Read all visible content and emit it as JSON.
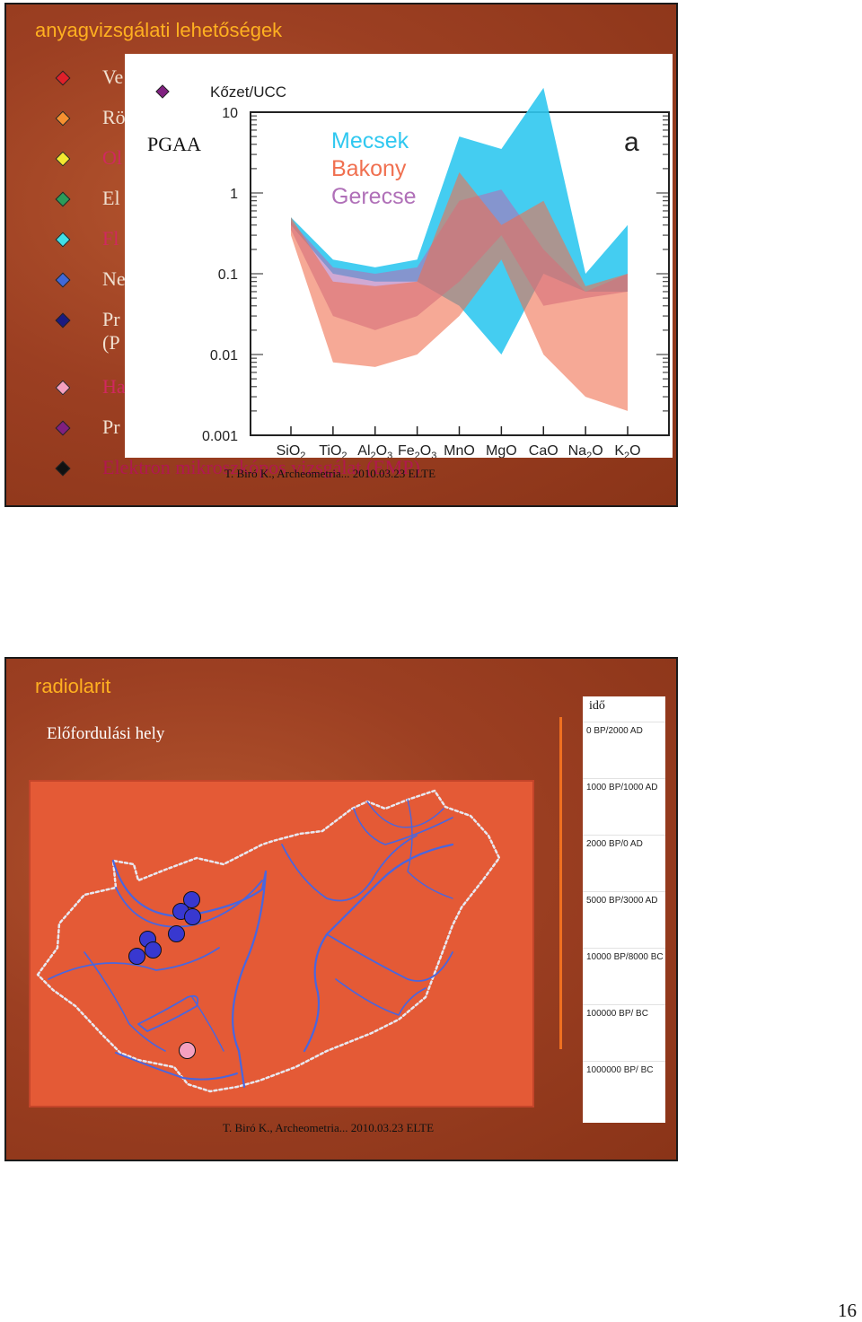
{
  "slide1": {
    "title": "anyagvizsgálati lehetőségek",
    "bullets": [
      {
        "text": "Ve",
        "diamond_color": "#e0202a",
        "text_color": "#f0e0d0"
      },
      {
        "text": "Rö",
        "diamond_color": "#f59030",
        "text_color": "#f0e0d0"
      },
      {
        "text": "Ol",
        "diamond_color": "#f2e830",
        "text_color": "#d02860"
      },
      {
        "text": "El",
        "diamond_color": "#2a9c5a",
        "text_color": "#f0e0d0"
      },
      {
        "text": "Fl",
        "diamond_color": "#40e0e8",
        "text_color": "#d02860"
      },
      {
        "text": "Ne",
        "diamond_color": "#4068d8",
        "text_color": "#f0e0d0"
      },
      {
        "text": "Pr",
        "text2": "(P",
        "diamond_color": "#1a1a80",
        "text_color": "#f0e0d0"
      },
      {
        "text": "Ha",
        "diamond_color": "#f4a0c0",
        "text_color": "#d02860"
      },
      {
        "text": "Pr",
        "diamond_color": "#802080",
        "text_color": "#f0e0d0"
      },
      {
        "text": "Elektron mikroszkópos vizsgálat (EMP)",
        "diamond_color": "#111111",
        "text_color": "#b01850"
      }
    ],
    "pgaa_label": "PGAA",
    "footer": "T. Biró K., Archeometria... 2010.03.23 ELTE",
    "chart_data": {
      "type": "area",
      "ylabel": "Kőzet/UCC",
      "yscale": "log",
      "ylim": [
        0.001,
        10
      ],
      "y_ticks": [
        "10",
        "1",
        "0.1",
        "0.01",
        "0.001"
      ],
      "categories": [
        "SiO2",
        "TiO2",
        "Al2O3",
        "Fe2O3",
        "MnO",
        "MgO",
        "CaO",
        "Na2O",
        "K2O"
      ],
      "panel_label": "a",
      "legend_position": "top-center",
      "series": [
        {
          "name": "Mecsek",
          "color": "#30c8f0",
          "upper": [
            0.5,
            0.15,
            0.12,
            0.15,
            5,
            3.5,
            20,
            0.1,
            0.4
          ],
          "lower": [
            0.4,
            0.1,
            0.08,
            0.08,
            0.04,
            0.01,
            0.1,
            0.06,
            0.06
          ]
        },
        {
          "name": "Bakony",
          "color": "#f07050",
          "upper": [
            0.5,
            0.08,
            0.07,
            0.08,
            1.8,
            0.4,
            0.8,
            0.07,
            0.1
          ],
          "lower": [
            0.3,
            0.008,
            0.007,
            0.01,
            0.03,
            0.15,
            0.01,
            0.003,
            0.002
          ]
        },
        {
          "name": "Gerecse",
          "color": "#b070b8",
          "upper": [
            0.45,
            0.12,
            0.1,
            0.12,
            0.8,
            1.1,
            0.2,
            0.06,
            0.1
          ],
          "lower": [
            0.35,
            0.03,
            0.02,
            0.03,
            0.08,
            0.3,
            0.04,
            0.05,
            0.06
          ]
        }
      ]
    }
  },
  "slide2": {
    "title": "radiolarit",
    "occurrence_label": "Előfordulási hely",
    "time_title": "idő",
    "time_ticks": [
      "0 BP/2000 AD",
      "1000 BP/1000 AD",
      "2000 BP/0 AD",
      "5000 BP/3000 AD",
      "10000 BP/8000 BC",
      "100000 BP/ BC",
      "1000000 BP/ BC"
    ],
    "site_colors": {
      "main": "#3838d0",
      "highlight": "#f4a0c0"
    },
    "footer": "T. Biró K., Archeometria... 2010.03.23 ELTE"
  },
  "page_number": "16"
}
